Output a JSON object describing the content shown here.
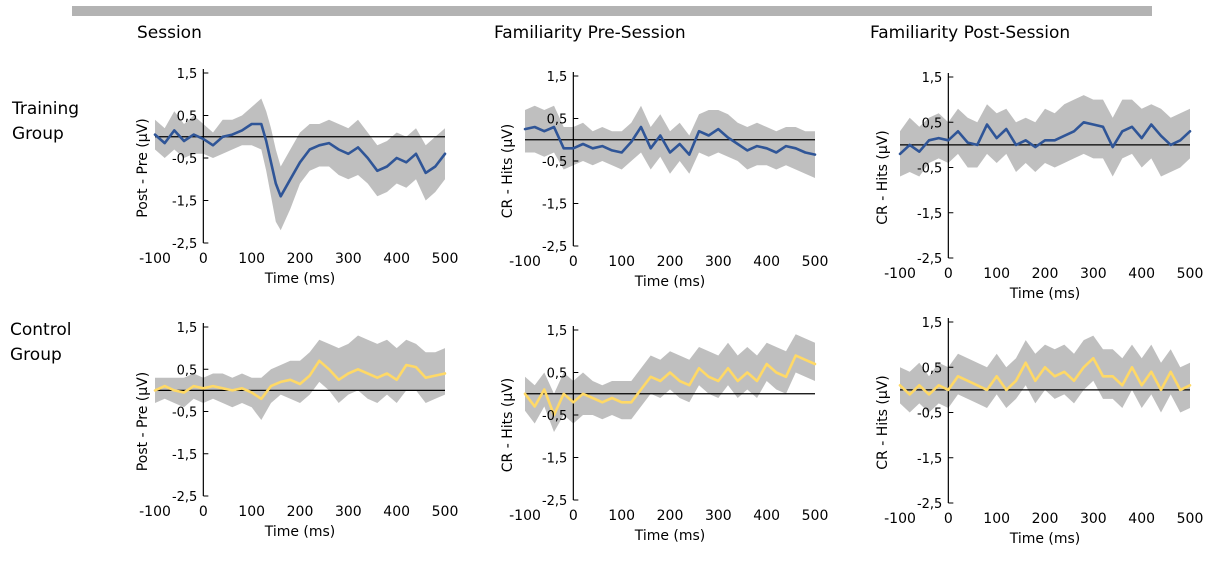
{
  "column_titles": [
    "Session",
    "Familiarity Pre-Session",
    "Familiarity Post-Session"
  ],
  "row_labels": [
    {
      "line1": "Training",
      "line2": "Group"
    },
    {
      "line1": "Control",
      "line2": "Group"
    }
  ],
  "colors": {
    "training_line": "#2f5597",
    "control_line": "#ffd966",
    "band": "#bfbfbf",
    "axis": "#000000"
  },
  "chart_data": [
    {
      "type": "line",
      "xlabel": "Time (ms)",
      "ylabel": "Post - Pre (µV)",
      "xticks": [
        -100,
        0,
        100,
        200,
        300,
        400,
        500
      ],
      "yticks": [
        "1,5",
        "0,5",
        "-0,5",
        "-1,5",
        "-2,5"
      ],
      "xlim": [
        -100,
        500
      ],
      "ylim": [
        -2.5,
        1.5
      ],
      "series": [
        {
          "color": "#2f5597",
          "x": [
            -100,
            -80,
            -60,
            -40,
            -20,
            0,
            20,
            40,
            60,
            80,
            100,
            120,
            130,
            140,
            150,
            160,
            180,
            200,
            220,
            240,
            260,
            280,
            300,
            320,
            340,
            360,
            380,
            400,
            420,
            440,
            460,
            480,
            500
          ],
          "y": [
            0.05,
            -0.15,
            0.15,
            -0.1,
            0.05,
            -0.05,
            -0.2,
            0.0,
            0.05,
            0.15,
            0.3,
            0.3,
            -0.1,
            -0.6,
            -1.1,
            -1.4,
            -1.0,
            -0.6,
            -0.3,
            -0.2,
            -0.15,
            -0.3,
            -0.4,
            -0.25,
            -0.5,
            -0.8,
            -0.7,
            -0.5,
            -0.6,
            -0.4,
            -0.85,
            -0.7,
            -0.4
          ],
          "band_lo": [
            -0.3,
            -0.5,
            -0.3,
            -0.5,
            -0.4,
            -0.4,
            -0.5,
            -0.4,
            -0.3,
            -0.2,
            -0.2,
            -0.3,
            -0.8,
            -1.4,
            -2.0,
            -2.2,
            -1.7,
            -1.1,
            -0.8,
            -0.7,
            -0.7,
            -0.9,
            -1.0,
            -0.9,
            -1.1,
            -1.4,
            -1.3,
            -1.1,
            -1.2,
            -1.0,
            -1.5,
            -1.3,
            -1.0
          ],
          "band_hi": [
            0.4,
            0.2,
            0.6,
            0.3,
            0.5,
            0.3,
            0.1,
            0.4,
            0.4,
            0.5,
            0.7,
            0.9,
            0.6,
            0.2,
            -0.3,
            -0.7,
            -0.3,
            0.1,
            0.3,
            0.3,
            0.4,
            0.3,
            0.2,
            0.4,
            0.1,
            -0.2,
            -0.1,
            0.1,
            0.0,
            0.2,
            -0.2,
            0.0,
            0.2
          ]
        }
      ]
    },
    {
      "type": "line",
      "xlabel": "Time (ms)",
      "ylabel": "CR - Hits (µV)",
      "xticks": [
        -100,
        0,
        100,
        200,
        300,
        400,
        500
      ],
      "yticks": [
        "1,5",
        "0,5",
        "-0,5",
        "-1,5",
        "-2,5"
      ],
      "xlim": [
        -100,
        500
      ],
      "ylim": [
        -2.5,
        1.5
      ],
      "series": [
        {
          "color": "#2f5597",
          "x": [
            -100,
            -80,
            -60,
            -40,
            -20,
            0,
            20,
            40,
            60,
            80,
            100,
            120,
            140,
            160,
            180,
            200,
            220,
            240,
            260,
            280,
            300,
            320,
            340,
            360,
            380,
            400,
            420,
            440,
            460,
            480,
            500
          ],
          "y": [
            0.25,
            0.3,
            0.2,
            0.3,
            -0.2,
            -0.2,
            -0.1,
            -0.2,
            -0.15,
            -0.25,
            -0.3,
            -0.05,
            0.3,
            -0.2,
            0.1,
            -0.3,
            -0.1,
            -0.35,
            0.2,
            0.1,
            0.25,
            0.05,
            -0.1,
            -0.25,
            -0.15,
            -0.2,
            -0.3,
            -0.15,
            -0.2,
            -0.3,
            -0.35
          ],
          "band_lo": [
            -0.3,
            -0.3,
            -0.4,
            -0.3,
            -0.7,
            -0.6,
            -0.5,
            -0.6,
            -0.5,
            -0.6,
            -0.7,
            -0.5,
            -0.3,
            -0.7,
            -0.4,
            -0.8,
            -0.5,
            -0.8,
            -0.3,
            -0.4,
            -0.3,
            -0.4,
            -0.5,
            -0.7,
            -0.6,
            -0.6,
            -0.7,
            -0.6,
            -0.7,
            -0.8,
            -0.9
          ],
          "band_hi": [
            0.7,
            0.8,
            0.7,
            0.8,
            0.3,
            0.3,
            0.4,
            0.2,
            0.3,
            0.2,
            0.2,
            0.4,
            0.8,
            0.3,
            0.6,
            0.2,
            0.4,
            0.1,
            0.6,
            0.7,
            0.7,
            0.6,
            0.4,
            0.3,
            0.4,
            0.3,
            0.2,
            0.3,
            0.3,
            0.2,
            0.2
          ]
        }
      ]
    },
    {
      "type": "line",
      "xlabel": "Time (ms)",
      "ylabel": "CR - Hits (µV)",
      "xticks": [
        -100,
        0,
        100,
        200,
        300,
        400,
        500
      ],
      "yticks": [
        "1,5",
        "0,5",
        "-0,5",
        "-1,5",
        "-2,5"
      ],
      "xlim": [
        -100,
        500
      ],
      "ylim": [
        -2.5,
        1.5
      ],
      "series": [
        {
          "color": "#2f5597",
          "x": [
            -100,
            -80,
            -60,
            -40,
            -20,
            0,
            20,
            40,
            60,
            80,
            100,
            120,
            140,
            160,
            180,
            200,
            220,
            240,
            260,
            280,
            300,
            320,
            340,
            360,
            380,
            400,
            420,
            440,
            460,
            480,
            500
          ],
          "y": [
            -0.2,
            0.0,
            -0.15,
            0.1,
            0.15,
            0.1,
            0.3,
            0.05,
            0.0,
            0.45,
            0.15,
            0.35,
            0.0,
            0.1,
            -0.05,
            0.1,
            0.1,
            0.2,
            0.3,
            0.5,
            0.45,
            0.4,
            -0.05,
            0.3,
            0.4,
            0.15,
            0.45,
            0.2,
            0.0,
            0.1,
            0.3
          ],
          "band_lo": [
            -0.7,
            -0.6,
            -0.7,
            -0.4,
            -0.3,
            -0.4,
            -0.2,
            -0.5,
            -0.5,
            -0.2,
            -0.4,
            -0.2,
            -0.6,
            -0.4,
            -0.6,
            -0.4,
            -0.5,
            -0.4,
            -0.3,
            -0.2,
            -0.3,
            -0.3,
            -0.7,
            -0.3,
            -0.2,
            -0.5,
            -0.3,
            -0.7,
            -0.6,
            -0.5,
            -0.3
          ],
          "band_hi": [
            0.3,
            0.6,
            0.4,
            0.6,
            0.7,
            0.5,
            0.8,
            0.6,
            0.5,
            0.9,
            0.7,
            0.8,
            0.5,
            0.6,
            0.5,
            0.8,
            0.7,
            0.9,
            1.0,
            1.1,
            1.0,
            1.0,
            0.6,
            1.0,
            1.0,
            0.8,
            0.9,
            0.8,
            0.6,
            0.7,
            0.8
          ]
        }
      ]
    },
    {
      "type": "line",
      "xlabel": "Time (ms)",
      "ylabel": "Post - Pre (µV)",
      "xticks": [
        -100,
        0,
        100,
        200,
        300,
        400,
        500
      ],
      "yticks": [
        "1,5",
        "0,5",
        "-0,5",
        "-1,5",
        "-2,5"
      ],
      "xlim": [
        -100,
        500
      ],
      "ylim": [
        -2.5,
        1.5
      ],
      "series": [
        {
          "color": "#ffd966",
          "x": [
            -100,
            -80,
            -60,
            -40,
            -20,
            0,
            20,
            40,
            60,
            80,
            100,
            120,
            140,
            160,
            180,
            200,
            220,
            240,
            260,
            280,
            300,
            320,
            340,
            360,
            380,
            400,
            420,
            440,
            460,
            480,
            500
          ],
          "y": [
            0.0,
            0.1,
            0.0,
            -0.05,
            0.1,
            0.05,
            0.1,
            0.05,
            0.0,
            0.05,
            -0.05,
            -0.2,
            0.1,
            0.2,
            0.25,
            0.15,
            0.35,
            0.7,
            0.5,
            0.25,
            0.4,
            0.5,
            0.4,
            0.3,
            0.4,
            0.25,
            0.6,
            0.55,
            0.3,
            0.35,
            0.4
          ],
          "band_lo": [
            -0.3,
            -0.2,
            -0.3,
            -0.4,
            -0.2,
            -0.3,
            -0.2,
            -0.3,
            -0.4,
            -0.3,
            -0.4,
            -0.7,
            -0.3,
            -0.1,
            -0.2,
            -0.3,
            -0.1,
            0.2,
            0.0,
            -0.3,
            -0.1,
            0.0,
            -0.2,
            -0.3,
            -0.1,
            -0.3,
            0.0,
            0.0,
            -0.3,
            -0.2,
            -0.1
          ],
          "band_hi": [
            0.3,
            0.3,
            0.3,
            0.3,
            0.4,
            0.3,
            0.4,
            0.4,
            0.3,
            0.4,
            0.3,
            0.3,
            0.5,
            0.6,
            0.7,
            0.7,
            0.9,
            1.2,
            1.1,
            1.0,
            1.1,
            1.3,
            1.2,
            1.1,
            1.2,
            1.0,
            1.2,
            1.1,
            0.9,
            0.9,
            1.0
          ]
        }
      ]
    },
    {
      "type": "line",
      "xlabel": "Time (ms)",
      "ylabel": "CR - Hits (µV)",
      "xticks": [
        -100,
        0,
        100,
        200,
        300,
        400,
        500
      ],
      "yticks": [
        "1,5",
        "0,5",
        "-0,5",
        "-1,5",
        "-2,5"
      ],
      "xlim": [
        -100,
        500
      ],
      "ylim": [
        -2.5,
        1.5
      ],
      "series": [
        {
          "color": "#ffd966",
          "x": [
            -100,
            -80,
            -60,
            -40,
            -20,
            0,
            20,
            40,
            60,
            80,
            100,
            120,
            140,
            160,
            180,
            200,
            220,
            240,
            260,
            280,
            300,
            320,
            340,
            360,
            380,
            400,
            420,
            440,
            460,
            480,
            500
          ],
          "y": [
            0.0,
            -0.3,
            0.1,
            -0.5,
            0.0,
            -0.2,
            0.0,
            -0.1,
            -0.2,
            -0.1,
            -0.2,
            -0.2,
            0.1,
            0.4,
            0.3,
            0.5,
            0.3,
            0.2,
            0.6,
            0.4,
            0.3,
            0.6,
            0.3,
            0.5,
            0.3,
            0.7,
            0.5,
            0.4,
            0.9,
            0.8,
            0.7
          ],
          "band_lo": [
            -0.4,
            -0.7,
            -0.3,
            -0.9,
            -0.5,
            -0.7,
            -0.5,
            -0.5,
            -0.6,
            -0.5,
            -0.6,
            -0.6,
            -0.3,
            0.0,
            -0.1,
            0.1,
            -0.1,
            -0.2,
            0.2,
            0.0,
            -0.1,
            0.2,
            -0.1,
            0.1,
            -0.1,
            0.3,
            0.1,
            0.0,
            0.5,
            0.4,
            0.3
          ],
          "band_hi": [
            0.4,
            0.2,
            0.5,
            0.0,
            0.5,
            0.3,
            0.5,
            0.3,
            0.2,
            0.3,
            0.3,
            0.3,
            0.6,
            0.9,
            0.8,
            1.0,
            0.9,
            0.8,
            1.1,
            1.0,
            0.9,
            1.2,
            0.9,
            1.1,
            0.9,
            1.2,
            1.1,
            1.0,
            1.4,
            1.3,
            1.2
          ]
        }
      ]
    },
    {
      "type": "line",
      "xlabel": "Time (ms)",
      "ylabel": "CR - Hits (µV)",
      "xticks": [
        -100,
        0,
        100,
        200,
        300,
        400,
        500
      ],
      "yticks": [
        "1,5",
        "0,5",
        "-0,5",
        "-1,5",
        "-2,5"
      ],
      "xlim": [
        -100,
        500
      ],
      "ylim": [
        -2.5,
        1.5
      ],
      "series": [
        {
          "color": "#ffd966",
          "x": [
            -100,
            -80,
            -60,
            -40,
            -20,
            0,
            20,
            40,
            60,
            80,
            100,
            120,
            140,
            160,
            180,
            200,
            220,
            240,
            260,
            280,
            300,
            320,
            340,
            360,
            380,
            400,
            420,
            440,
            460,
            480,
            500
          ],
          "y": [
            0.1,
            -0.1,
            0.1,
            -0.1,
            0.1,
            0.0,
            0.3,
            0.2,
            0.1,
            0.0,
            0.3,
            0.0,
            0.2,
            0.6,
            0.2,
            0.5,
            0.3,
            0.4,
            0.2,
            0.5,
            0.7,
            0.3,
            0.3,
            0.1,
            0.5,
            0.1,
            0.4,
            0.0,
            0.4,
            0.0,
            0.1
          ],
          "band_lo": [
            -0.3,
            -0.5,
            -0.3,
            -0.5,
            -0.3,
            -0.4,
            -0.1,
            -0.2,
            -0.3,
            -0.4,
            -0.1,
            -0.4,
            -0.2,
            0.1,
            -0.3,
            0.0,
            -0.2,
            -0.1,
            -0.3,
            0.0,
            0.2,
            -0.2,
            -0.2,
            -0.4,
            0.0,
            -0.4,
            -0.1,
            -0.5,
            -0.1,
            -0.5,
            -0.4
          ],
          "band_hi": [
            0.5,
            0.4,
            0.6,
            0.3,
            0.6,
            0.5,
            0.8,
            0.7,
            0.6,
            0.5,
            0.8,
            0.5,
            0.7,
            1.1,
            0.8,
            1.0,
            0.9,
            1.0,
            0.8,
            1.1,
            1.2,
            0.9,
            0.9,
            0.7,
            1.0,
            0.7,
            1.0,
            0.6,
            0.9,
            0.5,
            0.6
          ]
        }
      ]
    }
  ]
}
